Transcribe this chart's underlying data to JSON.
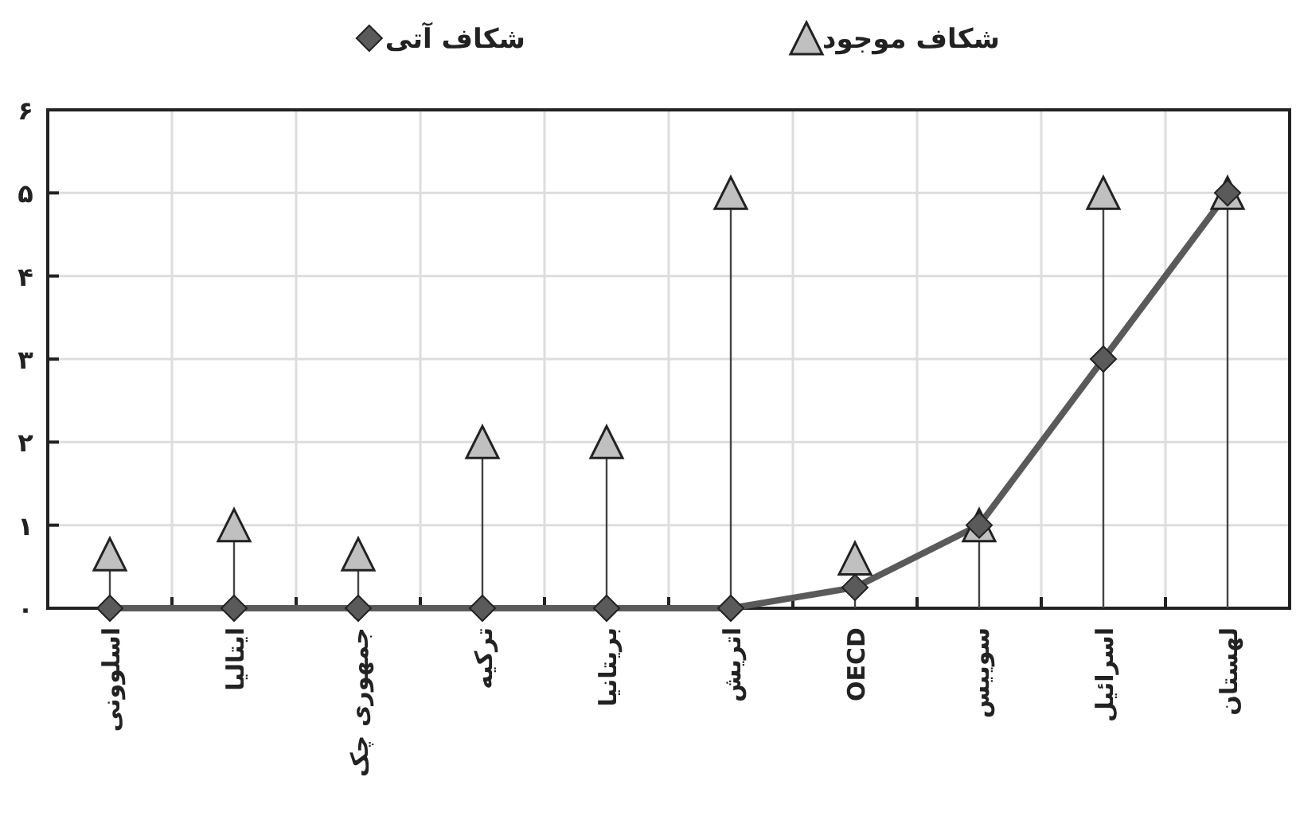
{
  "chart_data": {
    "type": "line",
    "categories": [
      "اسلوونی",
      "ایتالیا",
      "جمهوری چک",
      "ترکیه",
      "بریتانیا",
      "اتریش",
      "OECD",
      "سوییس",
      "اسرائیل",
      "لهستان"
    ],
    "series": [
      {
        "name": "شکاف موجود",
        "type": "lollipop",
        "marker": "triangle",
        "color": "#c0c0c0",
        "values": [
          0.65,
          1,
          0.65,
          2,
          2,
          5,
          0.6,
          1,
          5,
          5
        ]
      },
      {
        "name": "شکاف آتی",
        "marker": "diamond",
        "color": "#5a5a5a",
        "values": [
          0,
          0,
          0,
          0,
          0,
          0,
          0.25,
          1,
          3,
          5
        ]
      }
    ],
    "ylim": [
      0,
      6
    ],
    "yticks": [
      {
        "value": 0,
        "label": "۰"
      },
      {
        "value": 1,
        "label": "۱"
      },
      {
        "value": 2,
        "label": "۲"
      },
      {
        "value": 3,
        "label": "۳"
      },
      {
        "value": 4,
        "label": "۴"
      },
      {
        "value": 5,
        "label": "۵"
      },
      {
        "value": 6,
        "label": "۶"
      }
    ],
    "grid": true,
    "legend": "top"
  }
}
